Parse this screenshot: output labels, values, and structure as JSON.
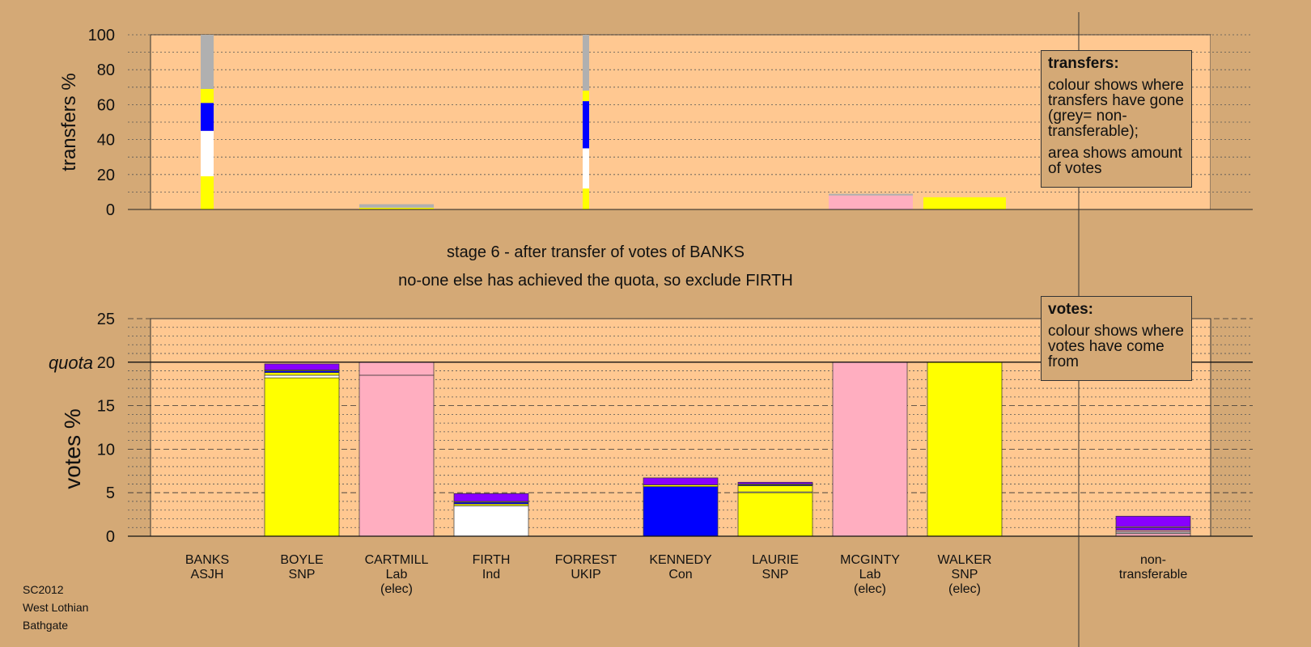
{
  "chart_data": [
    {
      "type": "bar",
      "subtype": "stacked",
      "ylabel": "transfers %",
      "ylim": [
        0,
        100
      ],
      "yticks": [
        0,
        20,
        40,
        60,
        80,
        100
      ],
      "bars": [
        {
          "category": "BANKS",
          "segments": [
            {
              "color": "#ffff00",
              "value": 19
            },
            {
              "color": "#ffffff",
              "value": 26
            },
            {
              "color": "#0000ff",
              "value": 16
            },
            {
              "color": "#ffff00",
              "value": 8
            },
            {
              "color": "#b0b0b0",
              "value": 31
            }
          ]
        },
        {
          "category": "CARTMILL",
          "segments": [
            {
              "color": "#ffff00",
              "value": 1
            },
            {
              "color": "#b0b0b0",
              "value": 2
            }
          ]
        },
        {
          "category": "FORREST",
          "segments": [
            {
              "color": "#ffff00",
              "value": 12
            },
            {
              "color": "#ffffff",
              "value": 23
            },
            {
              "color": "#0000ff",
              "value": 27
            },
            {
              "color": "#ffff00",
              "value": 6
            },
            {
              "color": "#b0b0b0",
              "value": 32
            }
          ]
        },
        {
          "category": "MCGINTY",
          "segments": [
            {
              "color": "#ffaec0",
              "value": 8
            },
            {
              "color": "#b0b0b0",
              "value": 1
            }
          ]
        },
        {
          "category": "WALKER",
          "segments": [
            {
              "color": "#ffff00",
              "value": 7
            }
          ]
        }
      ],
      "legend": {
        "title": "transfers:",
        "lines": [
          "colour shows where transfers have gone (grey= non-transferable);",
          "area shows amount of votes"
        ]
      }
    },
    {
      "type": "bar",
      "subtype": "stacked",
      "title": "stage 6 - after transfer of votes of BANKS",
      "subtitle": "no-one else has achieved the quota, so exclude FIRTH",
      "ylabel": "votes %",
      "ylim": [
        0,
        25
      ],
      "yticks": [
        0,
        5,
        10,
        15,
        20,
        25
      ],
      "quota": {
        "label": "quota",
        "value": 20
      },
      "categories": [
        {
          "name": "BANKS",
          "party": "ASJH",
          "note": ""
        },
        {
          "name": "BOYLE",
          "party": "SNP",
          "note": ""
        },
        {
          "name": "CARTMILL",
          "party": "Lab",
          "note": "(elec)"
        },
        {
          "name": "FIRTH",
          "party": "Ind",
          "note": ""
        },
        {
          "name": "FORREST",
          "party": "UKIP",
          "note": ""
        },
        {
          "name": "KENNEDY",
          "party": "Con",
          "note": ""
        },
        {
          "name": "LAURIE",
          "party": "SNP",
          "note": ""
        },
        {
          "name": "MCGINTY",
          "party": "Lab",
          "note": "(elec)"
        },
        {
          "name": "WALKER",
          "party": "SNP",
          "note": "(elec)"
        },
        {
          "name": "non-",
          "party": "transferable",
          "note": ""
        }
      ],
      "bars": [
        {
          "category": "BANKS",
          "segments": []
        },
        {
          "category": "BOYLE",
          "segments": [
            {
              "color": "#ffff00",
              "value": 18.2
            },
            {
              "color": "#ffffff",
              "value": 0.3
            },
            {
              "color": "#ffff00",
              "value": 0.3
            },
            {
              "color": "#0000ff",
              "value": 0.2
            },
            {
              "color": "#ffff00",
              "value": 0.1
            },
            {
              "color": "#8800ff",
              "value": 0.7
            }
          ]
        },
        {
          "category": "CARTMILL",
          "segments": [
            {
              "color": "#ffaec0",
              "value": 18.5
            },
            {
              "color": "#ffaec0",
              "value": 1.5
            }
          ]
        },
        {
          "category": "FIRTH",
          "segments": [
            {
              "color": "#ffffff",
              "value": 3.5
            },
            {
              "color": "#ffff00",
              "value": 0.2
            },
            {
              "color": "#0000ff",
              "value": 0.2
            },
            {
              "color": "#ffff00",
              "value": 0.1
            },
            {
              "color": "#8800ff",
              "value": 0.9
            }
          ]
        },
        {
          "category": "FORREST",
          "segments": []
        },
        {
          "category": "KENNEDY",
          "segments": [
            {
              "color": "#0000ff",
              "value": 5.7
            },
            {
              "color": "#ffff00",
              "value": 0.2
            },
            {
              "color": "#8800ff",
              "value": 0.8
            }
          ]
        },
        {
          "category": "LAURIE",
          "segments": [
            {
              "color": "#ffff00",
              "value": 5.0
            },
            {
              "color": "#ffffff",
              "value": 0.1
            },
            {
              "color": "#ffff00",
              "value": 0.7
            },
            {
              "color": "#0000ff",
              "value": 0.1
            },
            {
              "color": "#ffff00",
              "value": 0.1
            },
            {
              "color": "#8800ff",
              "value": 0.2
            }
          ]
        },
        {
          "category": "MCGINTY",
          "segments": [
            {
              "color": "#ffaec0",
              "value": 20
            }
          ]
        },
        {
          "category": "WALKER",
          "segments": [
            {
              "color": "#ffff00",
              "value": 20
            }
          ]
        },
        {
          "category": "non-transferable",
          "segments": [
            {
              "color": "#ffaec0",
              "value": 0.3
            },
            {
              "color": "#b0b0b0",
              "value": 0.2
            },
            {
              "color": "#ffaec0",
              "value": 0.2
            },
            {
              "color": "#8800ff",
              "value": 0.3
            },
            {
              "color": "#ffaec0",
              "value": 0.1
            },
            {
              "color": "#8800ff",
              "value": 1.2
            }
          ]
        }
      ],
      "legend": {
        "title": "votes:",
        "lines": [
          "colour shows where votes have come from"
        ]
      }
    }
  ],
  "footer": {
    "line1": "SC2012",
    "line2": "West Lothian",
    "line3": "Bathgate"
  },
  "colors": {
    "background": "#d4a976",
    "plot_area": "#ffc891"
  }
}
